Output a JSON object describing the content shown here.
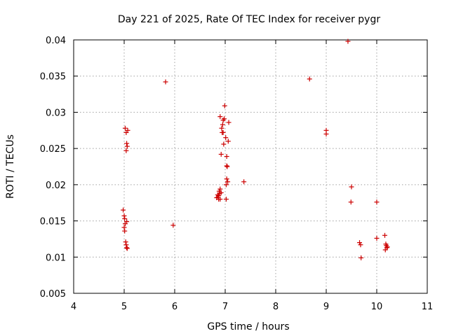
{
  "chart_data": {
    "type": "scatter",
    "title": "Day 221 of 2025, Rate Of TEC Index for receiver pygr",
    "xlabel": "GPS time / hours",
    "ylabel": "ROTI / TECUs",
    "xlim": [
      4,
      11
    ],
    "ylim": [
      0.005,
      0.04
    ],
    "xticks": [
      4,
      5,
      6,
      7,
      8,
      9,
      10,
      11
    ],
    "xtick_labels": [
      "4",
      "5",
      "6",
      "7",
      "8",
      "9",
      "10",
      "11"
    ],
    "yticks": [
      0.005,
      0.01,
      0.015,
      0.02,
      0.025,
      0.03,
      0.035,
      0.04
    ],
    "ytick_labels": [
      "0.005",
      "0.01",
      "0.015",
      "0.02",
      "0.025",
      "0.03",
      "0.035",
      "0.04"
    ],
    "grid": true,
    "marker": "+",
    "marker_color": "#cc0000",
    "series": [
      {
        "name": "pygr",
        "points": [
          [
            4.98,
            0.0165
          ],
          [
            5.0,
            0.0157
          ],
          [
            5.01,
            0.0153
          ],
          [
            5.02,
            0.0146
          ],
          [
            5.0,
            0.0141
          ],
          [
            5.01,
            0.0136
          ],
          [
            5.05,
            0.0149
          ],
          [
            5.03,
            0.0121
          ],
          [
            5.04,
            0.0117
          ],
          [
            5.05,
            0.0113
          ],
          [
            5.06,
            0.0112
          ],
          [
            5.02,
            0.0278
          ],
          [
            5.04,
            0.0272
          ],
          [
            5.07,
            0.0275
          ],
          [
            5.05,
            0.0257
          ],
          [
            5.06,
            0.0253
          ],
          [
            5.04,
            0.0247
          ],
          [
            5.82,
            0.0342
          ],
          [
            5.97,
            0.0144
          ],
          [
            6.83,
            0.0182
          ],
          [
            6.85,
            0.0186
          ],
          [
            6.86,
            0.0183
          ],
          [
            6.87,
            0.018
          ],
          [
            6.88,
            0.0191
          ],
          [
            6.89,
            0.0188
          ],
          [
            6.9,
            0.0194
          ],
          [
            6.87,
            0.0185
          ],
          [
            6.9,
            0.018
          ],
          [
            6.92,
            0.0189
          ],
          [
            6.9,
            0.0294
          ],
          [
            6.95,
            0.0283
          ],
          [
            6.93,
            0.0278
          ],
          [
            6.96,
            0.0289
          ],
          [
            6.98,
            0.0291
          ],
          [
            6.99,
            0.0309
          ],
          [
            7.07,
            0.0286
          ],
          [
            6.94,
            0.0272
          ],
          [
            6.96,
            0.0272
          ],
          [
            7.01,
            0.0265
          ],
          [
            7.06,
            0.026
          ],
          [
            6.97,
            0.0256
          ],
          [
            6.92,
            0.0242
          ],
          [
            7.03,
            0.0239
          ],
          [
            7.03,
            0.0226
          ],
          [
            7.04,
            0.0225
          ],
          [
            7.03,
            0.0208
          ],
          [
            7.05,
            0.0204
          ],
          [
            7.02,
            0.02
          ],
          [
            7.02,
            0.018
          ],
          [
            7.37,
            0.0204
          ],
          [
            8.67,
            0.0346
          ],
          [
            9.43,
            0.0398
          ],
          [
            9.0,
            0.0275
          ],
          [
            9.0,
            0.027
          ],
          [
            9.5,
            0.0197
          ],
          [
            9.49,
            0.0176
          ],
          [
            9.66,
            0.012
          ],
          [
            9.68,
            0.0117
          ],
          [
            9.69,
            0.0099
          ],
          [
            10.0,
            0.0176
          ],
          [
            10.0,
            0.0126
          ],
          [
            10.16,
            0.013
          ],
          [
            10.19,
            0.0116
          ],
          [
            10.2,
            0.0113
          ],
          [
            10.17,
            0.011
          ],
          [
            10.21,
            0.0114
          ],
          [
            10.18,
            0.0118
          ]
        ]
      }
    ]
  }
}
